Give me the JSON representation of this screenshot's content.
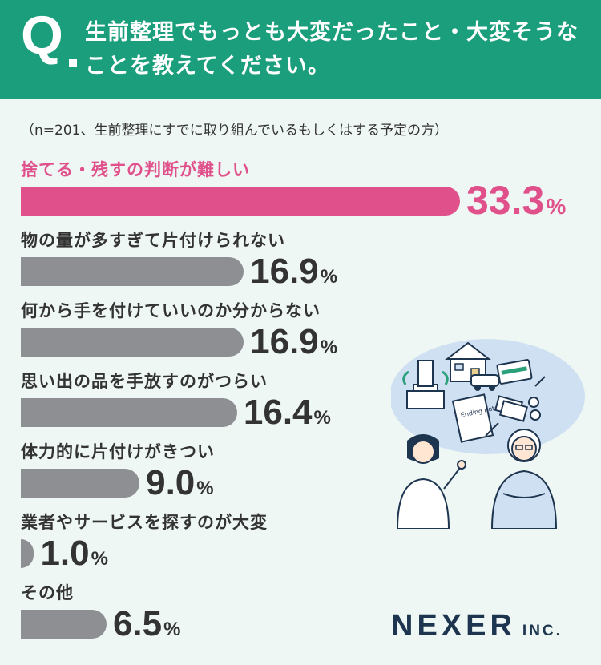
{
  "header": {
    "q_mark": "Q",
    "question": "生前整理でもっとも大変だったこと・大変そうなことを教えてください。"
  },
  "note": "（n=201、生前整理にすでに取り組んでいるもしくはする予定の方）",
  "colors": {
    "header_bg": "#1a9e7c",
    "highlight": "#e0518c",
    "bar": "#8e8f93",
    "background": "#eef7f3"
  },
  "chart_data": {
    "type": "bar",
    "orientation": "horizontal",
    "categories": [
      "捨てる・残すの判断が難しい",
      "物の量が多すぎて片付けられない",
      "何から手を付けていいのか分からない",
      "思い出の品を手放すのがつらい",
      "体力的に片付けがきつい",
      "業者やサービスを探すのが大変",
      "その他"
    ],
    "values": [
      33.3,
      16.9,
      16.9,
      16.4,
      9.0,
      1.0,
      6.5
    ],
    "value_labels": [
      "33.3",
      "16.9",
      "16.9",
      "16.4",
      "9.0",
      "1.0",
      "6.5"
    ],
    "unit": "%",
    "highlight_index": 0,
    "xlim": [
      0,
      33.3
    ]
  },
  "illustration": {
    "description_icons": [
      "house-icon",
      "car-icon",
      "gravestone-icon",
      "credit-card-icon",
      "money-icon",
      "coins-icon",
      "ending-note-icon",
      "pen-icon"
    ],
    "note_title": "Ending note"
  },
  "logo": {
    "main": "NEXER",
    "sub": "INC."
  }
}
